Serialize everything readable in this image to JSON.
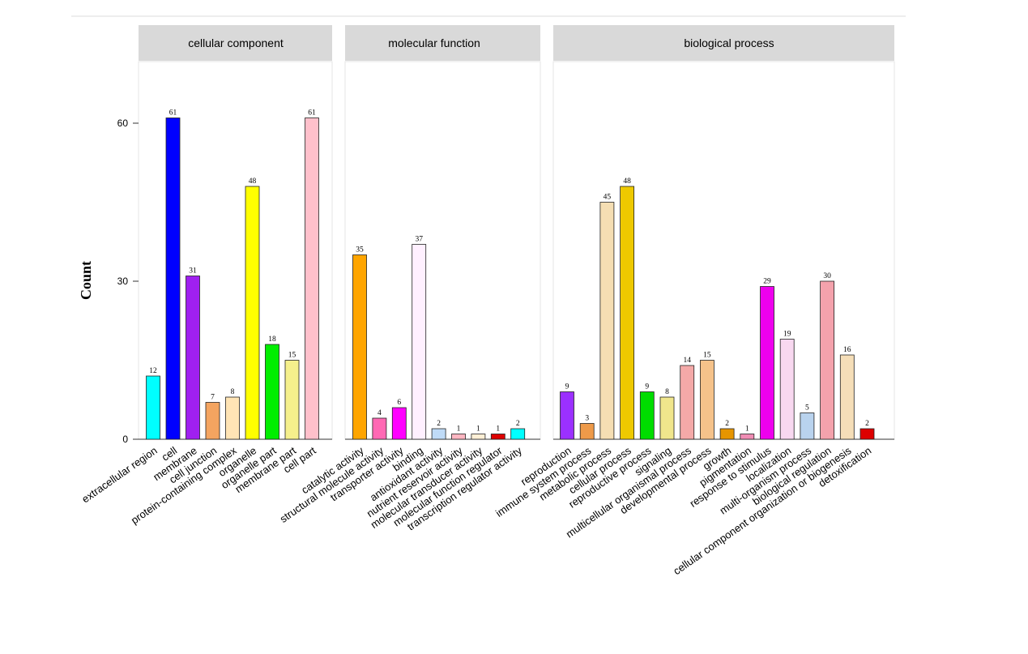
{
  "chart_data": {
    "type": "bar",
    "ylabel": "Count",
    "yticks": [
      0,
      30,
      60
    ],
    "ylim": [
      0,
      70
    ],
    "grid": false,
    "facets": [
      {
        "name": "cellular component",
        "bars": [
          {
            "label": "extracellular region",
            "value": 12,
            "color": "#00FFFF"
          },
          {
            "label": "cell",
            "value": 61,
            "color": "#0000FF"
          },
          {
            "label": "membrane",
            "value": 31,
            "color": "#A020F0"
          },
          {
            "label": "cell junction",
            "value": 7,
            "color": "#F4A460"
          },
          {
            "label": "protein-containing complex",
            "value": 8,
            "color": "#FFE4B5"
          },
          {
            "label": "organelle",
            "value": 48,
            "color": "#FFFF00"
          },
          {
            "label": "organelle part",
            "value": 18,
            "color": "#00EE00"
          },
          {
            "label": "membrane part",
            "value": 15,
            "color": "#F5F08C"
          },
          {
            "label": "cell part",
            "value": 61,
            "color": "#FFC0CB"
          }
        ]
      },
      {
        "name": "molecular function",
        "bars": [
          {
            "label": "catalytic activity",
            "value": 35,
            "color": "#FFA500"
          },
          {
            "label": "structural molecule activity",
            "value": 4,
            "color": "#FF69B4"
          },
          {
            "label": "transporter activity",
            "value": 6,
            "color": "#FF00FF"
          },
          {
            "label": "binding",
            "value": 37,
            "color": "#FFF0FF"
          },
          {
            "label": "antioxidant activity",
            "value": 2,
            "color": "#BFDBF7"
          },
          {
            "label": "nutrient reservoir activity",
            "value": 1,
            "color": "#FFB6C1"
          },
          {
            "label": "molecular transducer activity",
            "value": 1,
            "color": "#FFEFD5"
          },
          {
            "label": "molecular function regulator",
            "value": 1,
            "color": "#DD0000"
          },
          {
            "label": "transcription regulator activity",
            "value": 2,
            "color": "#00FFFF"
          }
        ]
      },
      {
        "name": "biological process",
        "bars": [
          {
            "label": "reproduction",
            "value": 9,
            "color": "#9B30FF"
          },
          {
            "label": "immune system process",
            "value": 3,
            "color": "#EE9A49"
          },
          {
            "label": "metabolic process",
            "value": 45,
            "color": "#F5DEB3"
          },
          {
            "label": "cellular process",
            "value": 48,
            "color": "#EEC900"
          },
          {
            "label": "reproductive process",
            "value": 9,
            "color": "#00DD00"
          },
          {
            "label": "signaling",
            "value": 8,
            "color": "#F0E68C"
          },
          {
            "label": "multicellular organismal process",
            "value": 14,
            "color": "#F4A9A8"
          },
          {
            "label": "developmental process",
            "value": 15,
            "color": "#F5C28A"
          },
          {
            "label": "growth",
            "value": 2,
            "color": "#E69500"
          },
          {
            "label": "pigmentation",
            "value": 1,
            "color": "#F08CB4"
          },
          {
            "label": "response to stimulus",
            "value": 29,
            "color": "#EE00EE"
          },
          {
            "label": "localization",
            "value": 19,
            "color": "#F8D8F0"
          },
          {
            "label": "multi-organism process",
            "value": 5,
            "color": "#B9D3EE"
          },
          {
            "label": "biological regulation",
            "value": 30,
            "color": "#F4A2AC"
          },
          {
            "label": "cellular component organization or biogenesis",
            "value": 16,
            "color": "#F5DEB8"
          },
          {
            "label": "detoxification",
            "value": 2,
            "color": "#DD0000"
          }
        ]
      }
    ]
  }
}
